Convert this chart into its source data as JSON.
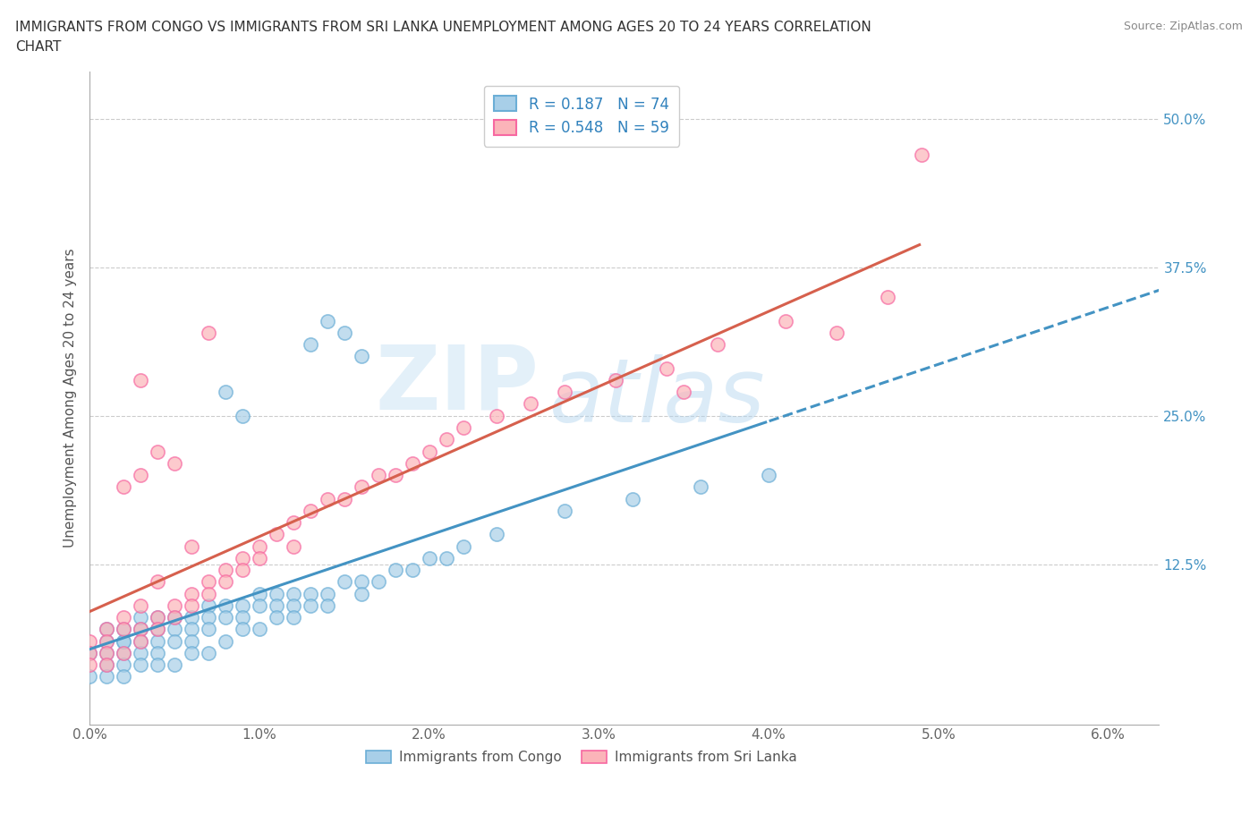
{
  "title_line1": "IMMIGRANTS FROM CONGO VS IMMIGRANTS FROM SRI LANKA UNEMPLOYMENT AMONG AGES 20 TO 24 YEARS CORRELATION",
  "title_line2": "CHART",
  "source": "Source: ZipAtlas.com",
  "ylabel": "Unemployment Among Ages 20 to 24 years",
  "xlim": [
    0.0,
    0.063
  ],
  "ylim": [
    -0.01,
    0.54
  ],
  "xticks": [
    0.0,
    0.01,
    0.02,
    0.03,
    0.04,
    0.05,
    0.06
  ],
  "xticklabels": [
    "0.0%",
    "1.0%",
    "2.0%",
    "3.0%",
    "4.0%",
    "5.0%",
    "6.0%"
  ],
  "yticks": [
    0.125,
    0.25,
    0.375,
    0.5
  ],
  "yticklabels": [
    "12.5%",
    "25.0%",
    "37.5%",
    "50.0%"
  ],
  "congo_color": "#a8cfe8",
  "congo_edge_color": "#6baed6",
  "srilanka_color": "#fbb4b9",
  "srilanka_edge_color": "#f768a1",
  "congo_line_color": "#4393c3",
  "srilanka_line_color": "#d6604d",
  "R_congo": 0.187,
  "N_congo": 74,
  "R_srilanka": 0.548,
  "N_srilanka": 59,
  "legend_label_congo": "Immigrants from Congo",
  "legend_label_srilanka": "Immigrants from Sri Lanka",
  "watermark_zip": "ZIP",
  "watermark_atlas": "atlas",
  "grid_color": "#cccccc",
  "background_color": "#ffffff",
  "congo_x": [
    0.0,
    0.0,
    0.001,
    0.001,
    0.001,
    0.001,
    0.001,
    0.002,
    0.002,
    0.002,
    0.002,
    0.002,
    0.002,
    0.003,
    0.003,
    0.003,
    0.003,
    0.003,
    0.004,
    0.004,
    0.004,
    0.004,
    0.004,
    0.005,
    0.005,
    0.005,
    0.005,
    0.006,
    0.006,
    0.006,
    0.006,
    0.007,
    0.007,
    0.007,
    0.007,
    0.008,
    0.008,
    0.008,
    0.009,
    0.009,
    0.009,
    0.01,
    0.01,
    0.01,
    0.011,
    0.011,
    0.011,
    0.012,
    0.012,
    0.012,
    0.013,
    0.013,
    0.014,
    0.014,
    0.015,
    0.016,
    0.016,
    0.017,
    0.018,
    0.019,
    0.02,
    0.021,
    0.022,
    0.024,
    0.028,
    0.032,
    0.036,
    0.04,
    0.013,
    0.014,
    0.015,
    0.016,
    0.008,
    0.009
  ],
  "congo_y": [
    0.05,
    0.03,
    0.06,
    0.05,
    0.04,
    0.03,
    0.07,
    0.06,
    0.05,
    0.04,
    0.07,
    0.06,
    0.03,
    0.07,
    0.06,
    0.05,
    0.04,
    0.08,
    0.07,
    0.06,
    0.05,
    0.08,
    0.04,
    0.08,
    0.07,
    0.06,
    0.04,
    0.08,
    0.07,
    0.06,
    0.05,
    0.09,
    0.08,
    0.07,
    0.05,
    0.09,
    0.08,
    0.06,
    0.09,
    0.08,
    0.07,
    0.1,
    0.09,
    0.07,
    0.1,
    0.09,
    0.08,
    0.1,
    0.09,
    0.08,
    0.1,
    0.09,
    0.1,
    0.09,
    0.11,
    0.11,
    0.1,
    0.11,
    0.12,
    0.12,
    0.13,
    0.13,
    0.14,
    0.15,
    0.17,
    0.18,
    0.19,
    0.2,
    0.31,
    0.33,
    0.32,
    0.3,
    0.27,
    0.25
  ],
  "srilanka_x": [
    0.0,
    0.0,
    0.0,
    0.001,
    0.001,
    0.001,
    0.001,
    0.002,
    0.002,
    0.002,
    0.003,
    0.003,
    0.003,
    0.003,
    0.004,
    0.004,
    0.004,
    0.005,
    0.005,
    0.005,
    0.006,
    0.006,
    0.006,
    0.007,
    0.007,
    0.007,
    0.008,
    0.008,
    0.009,
    0.009,
    0.01,
    0.01,
    0.011,
    0.012,
    0.012,
    0.013,
    0.014,
    0.015,
    0.016,
    0.017,
    0.018,
    0.019,
    0.02,
    0.021,
    0.022,
    0.024,
    0.026,
    0.028,
    0.031,
    0.034,
    0.037,
    0.041,
    0.044,
    0.047,
    0.002,
    0.003,
    0.004,
    0.049,
    0.035
  ],
  "srilanka_y": [
    0.06,
    0.05,
    0.04,
    0.07,
    0.06,
    0.05,
    0.04,
    0.08,
    0.07,
    0.05,
    0.09,
    0.07,
    0.06,
    0.28,
    0.08,
    0.07,
    0.22,
    0.09,
    0.08,
    0.21,
    0.1,
    0.09,
    0.14,
    0.11,
    0.1,
    0.32,
    0.12,
    0.11,
    0.13,
    0.12,
    0.14,
    0.13,
    0.15,
    0.16,
    0.14,
    0.17,
    0.18,
    0.18,
    0.19,
    0.2,
    0.2,
    0.21,
    0.22,
    0.23,
    0.24,
    0.25,
    0.26,
    0.27,
    0.28,
    0.29,
    0.31,
    0.33,
    0.32,
    0.35,
    0.19,
    0.2,
    0.11,
    0.47,
    0.27
  ]
}
